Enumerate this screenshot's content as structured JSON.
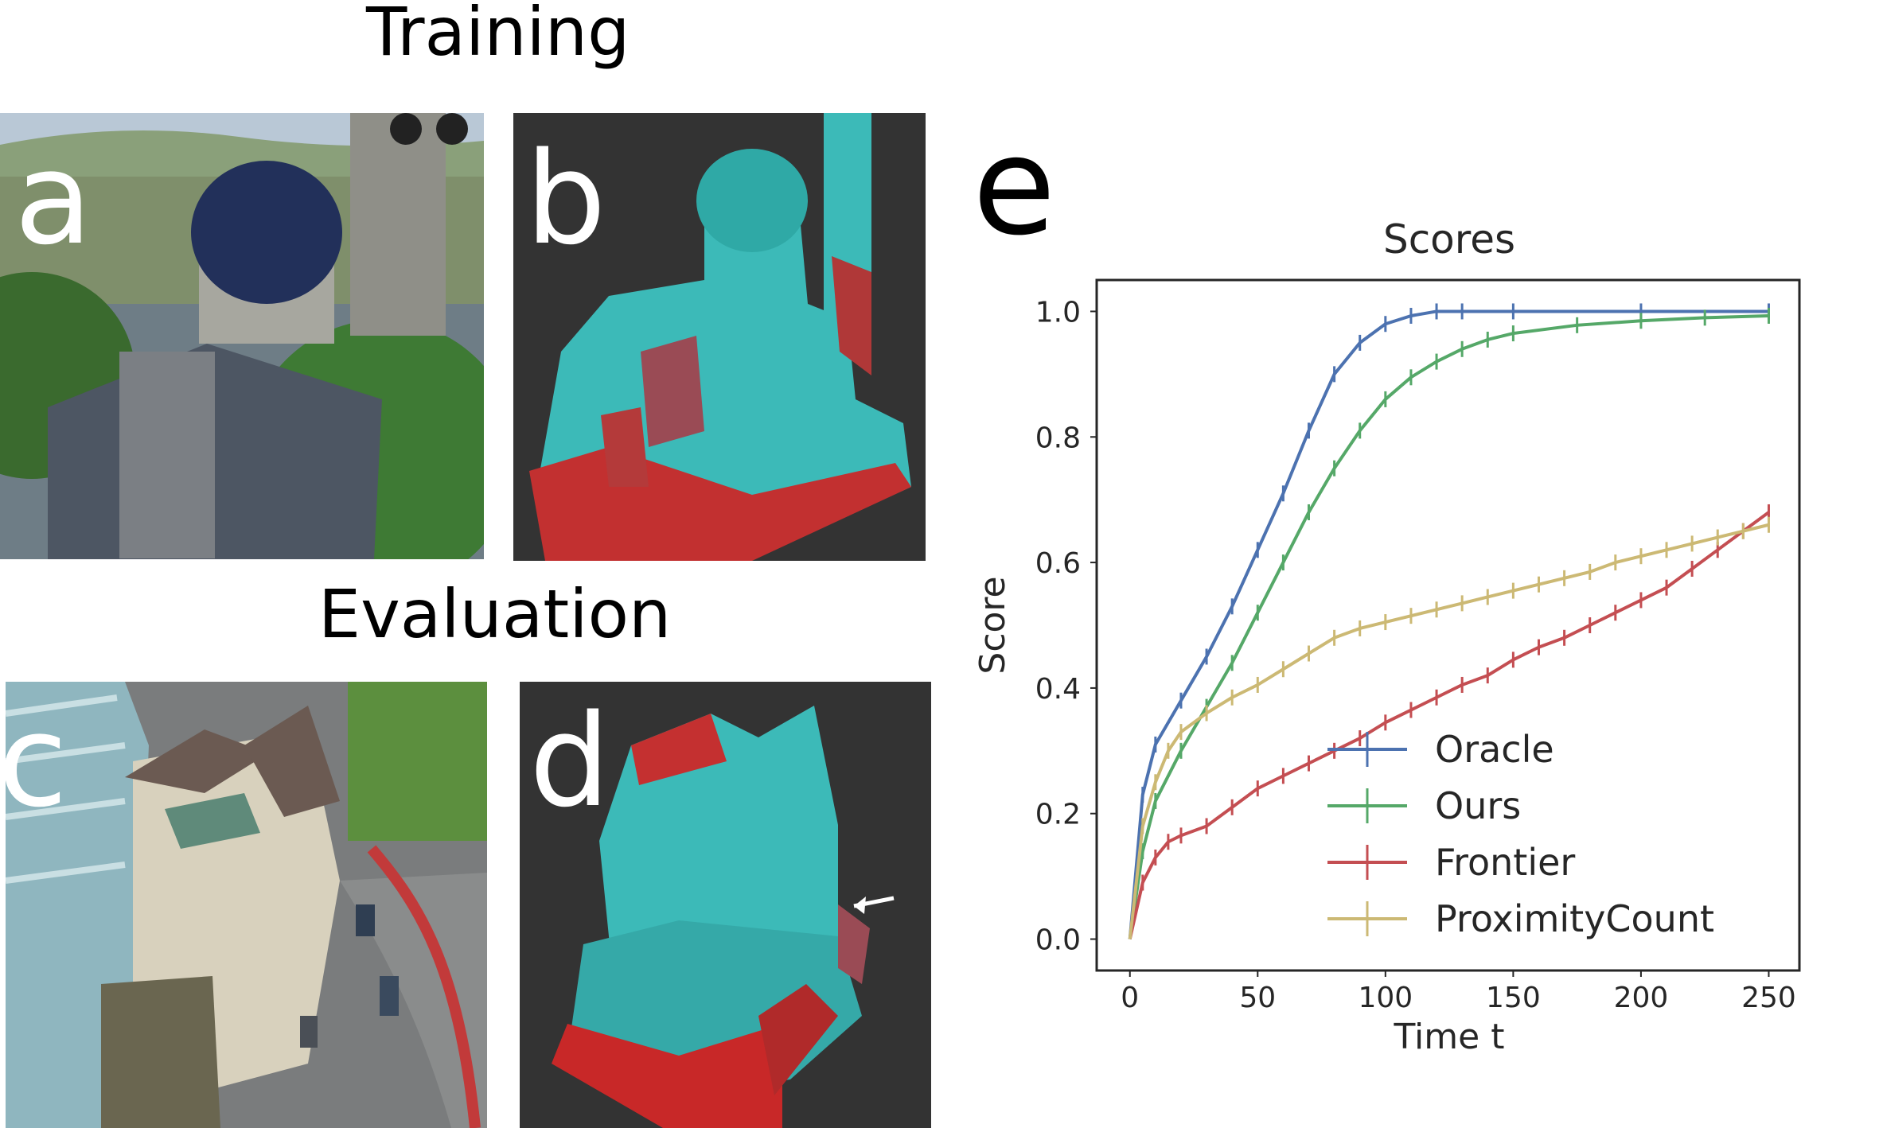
{
  "titles": {
    "training": "Training",
    "evaluation": "Evaluation"
  },
  "panels": {
    "a": "a",
    "b": "b",
    "c": "c",
    "d": "d",
    "e": "e"
  },
  "chart_data": {
    "type": "line",
    "title": "Scores",
    "xlabel": "Time t",
    "ylabel": "Score",
    "xlim": [
      -13,
      262
    ],
    "ylim": [
      -0.05,
      1.05
    ],
    "xticks": [
      0,
      50,
      100,
      150,
      200,
      250
    ],
    "xtick_labels": [
      "0",
      "50",
      "100",
      "150",
      "200",
      "250"
    ],
    "yticks": [
      0.0,
      0.2,
      0.4,
      0.6,
      0.8,
      1.0
    ],
    "ytick_labels": [
      "0.0",
      "0.2",
      "0.4",
      "0.6",
      "0.8",
      "1.0"
    ],
    "grid": false,
    "legend_position": "lower-right",
    "series": [
      {
        "name": "Oracle",
        "color": "#4c72b0",
        "x": [
          0,
          5,
          10,
          20,
          30,
          40,
          50,
          60,
          70,
          80,
          90,
          100,
          110,
          120,
          130,
          150,
          200,
          250
        ],
        "y": [
          0.0,
          0.23,
          0.31,
          0.38,
          0.45,
          0.53,
          0.62,
          0.71,
          0.81,
          0.9,
          0.95,
          0.98,
          0.993,
          1.0,
          1.0,
          1.0,
          1.0,
          1.0
        ]
      },
      {
        "name": "Ours",
        "color": "#55a868",
        "x": [
          0,
          5,
          10,
          20,
          30,
          40,
          50,
          60,
          70,
          80,
          90,
          100,
          110,
          120,
          130,
          140,
          150,
          175,
          200,
          225,
          250
        ],
        "y": [
          0.0,
          0.14,
          0.22,
          0.3,
          0.37,
          0.44,
          0.52,
          0.6,
          0.68,
          0.75,
          0.81,
          0.86,
          0.895,
          0.92,
          0.94,
          0.955,
          0.965,
          0.978,
          0.985,
          0.99,
          0.993
        ]
      },
      {
        "name": "Frontier",
        "color": "#c44e52",
        "x": [
          0,
          5,
          10,
          15,
          20,
          30,
          40,
          50,
          60,
          70,
          80,
          90,
          100,
          110,
          120,
          130,
          140,
          150,
          160,
          170,
          180,
          190,
          200,
          210,
          220,
          230,
          240,
          250
        ],
        "y": [
          0.0,
          0.09,
          0.13,
          0.155,
          0.165,
          0.18,
          0.21,
          0.24,
          0.26,
          0.28,
          0.3,
          0.32,
          0.345,
          0.365,
          0.385,
          0.405,
          0.42,
          0.445,
          0.465,
          0.48,
          0.5,
          0.52,
          0.54,
          0.56,
          0.59,
          0.62,
          0.65,
          0.68
        ]
      },
      {
        "name": "ProximityCount",
        "color": "#ccb974",
        "x": [
          0,
          5,
          10,
          15,
          20,
          30,
          40,
          50,
          60,
          70,
          80,
          90,
          100,
          110,
          120,
          130,
          140,
          150,
          160,
          170,
          180,
          190,
          200,
          210,
          220,
          230,
          240,
          250
        ],
        "y": [
          0.0,
          0.18,
          0.25,
          0.3,
          0.33,
          0.36,
          0.385,
          0.405,
          0.43,
          0.455,
          0.48,
          0.495,
          0.505,
          0.515,
          0.525,
          0.535,
          0.545,
          0.555,
          0.565,
          0.575,
          0.585,
          0.6,
          0.61,
          0.62,
          0.63,
          0.64,
          0.65,
          0.66
        ]
      }
    ]
  }
}
